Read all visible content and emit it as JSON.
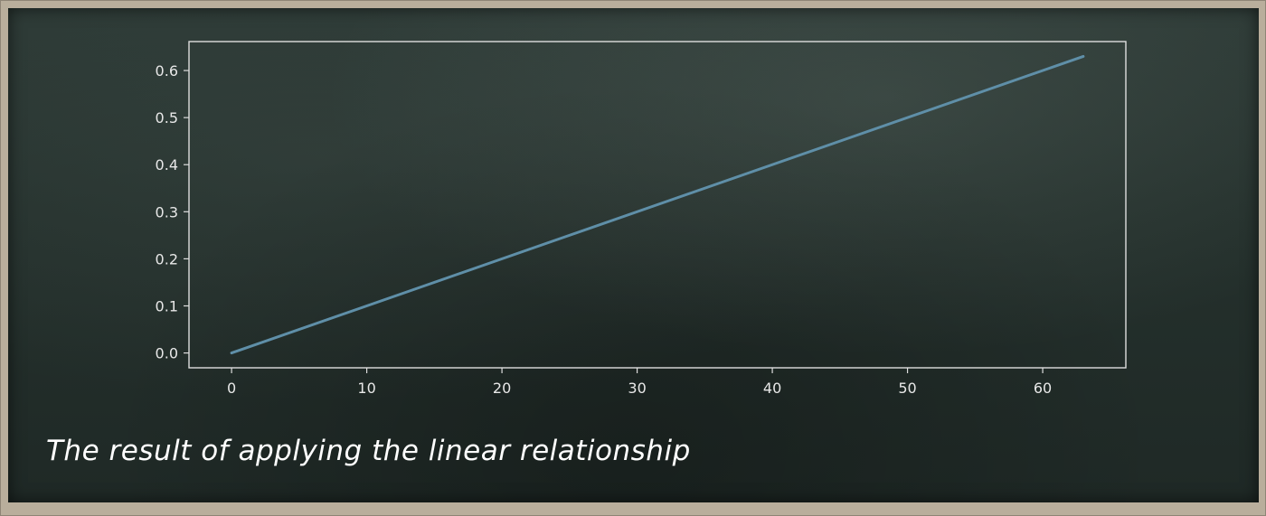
{
  "caption": "The result of applying the linear relationship",
  "colors": {
    "line": "#5f8fa8",
    "axes": "#dedede",
    "text": "#e8e8e8"
  },
  "chart_data": {
    "type": "line",
    "title": "",
    "xlabel": "",
    "ylabel": "",
    "xlim": [
      -3.15,
      66.15
    ],
    "ylim": [
      -0.0315,
      0.6615
    ],
    "xticks": [
      0,
      10,
      20,
      30,
      40,
      50,
      60
    ],
    "xtick_labels": [
      "0",
      "10",
      "20",
      "30",
      "40",
      "50",
      "60"
    ],
    "yticks": [
      0.0,
      0.1,
      0.2,
      0.3,
      0.4,
      0.5,
      0.6
    ],
    "ytick_labels": [
      "0.0",
      "0.1",
      "0.2",
      "0.3",
      "0.4",
      "0.5",
      "0.6"
    ],
    "grid": false,
    "series": [
      {
        "x": [
          0,
          63
        ],
        "values": [
          0.0,
          0.63
        ]
      }
    ]
  }
}
